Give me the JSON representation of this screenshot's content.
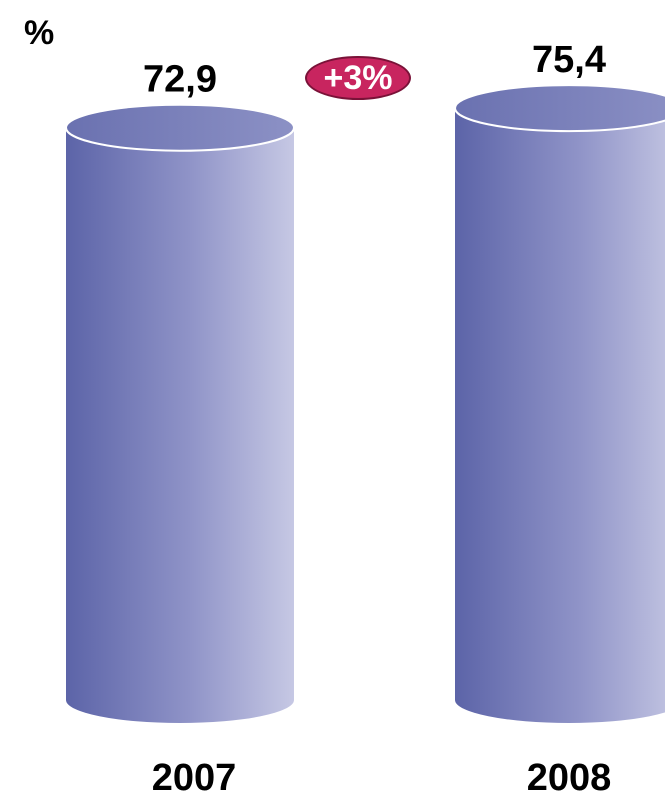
{
  "unit_label": "%",
  "change_badge": "+3%",
  "colors": {
    "bar_dark": "#5c64a8",
    "bar_mid": "#8a90c4",
    "bar_light": "#c2c4e2",
    "badge": "#c8255f"
  },
  "chart_data": {
    "type": "bar",
    "style": "cylinder",
    "categories": [
      "2007",
      "2008"
    ],
    "values": [
      72.9,
      75.4
    ],
    "value_labels": [
      "72,9",
      "75,4"
    ],
    "unit": "%",
    "ylim": [
      0,
      80
    ],
    "grid": false,
    "annotations": [
      "+3%"
    ]
  }
}
